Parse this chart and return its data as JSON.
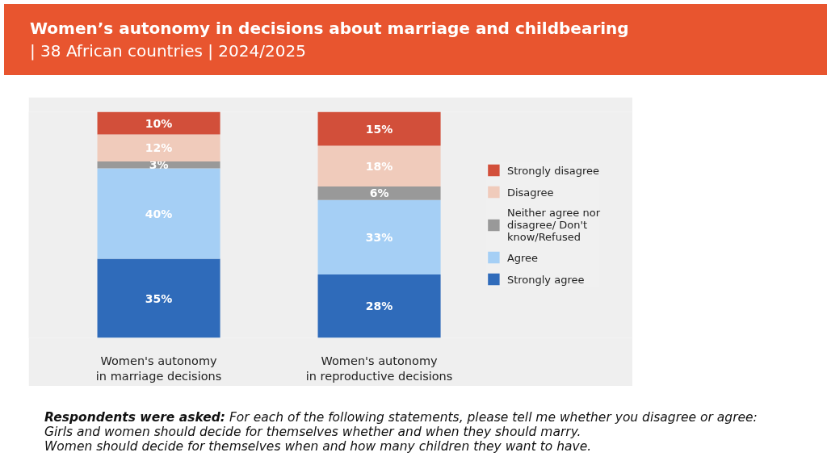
{
  "chart_data": {
    "type": "bar",
    "stacked": true,
    "title": "Women’s autonomy in decisions about marriage and childbearing",
    "subtitle": "| 38 African countries | 2024/2025",
    "categories": [
      "Women's autonomy in marriage decisions",
      "Women's autonomy in reproductive decisions"
    ],
    "series": [
      {
        "name": "Strongly agree",
        "color": "#2f6bba",
        "values": [
          35,
          28
        ],
        "value_labels": [
          "35%",
          "28%"
        ]
      },
      {
        "name": "Agree",
        "color": "#a5cff5",
        "values": [
          40,
          33
        ],
        "value_labels": [
          "40%",
          "33%"
        ]
      },
      {
        "name": "Neither agree nor disagree/ Don't know/Refused",
        "color": "#999999",
        "values": [
          3,
          6
        ],
        "value_labels": [
          "3%",
          "6%"
        ]
      },
      {
        "name": "Disagree",
        "color": "#f0cbbb",
        "values": [
          12,
          18
        ],
        "value_labels": [
          "12%",
          "18%"
        ]
      },
      {
        "name": "Strongly disagree",
        "color": "#d24f3a",
        "values": [
          10,
          15
        ],
        "value_labels": [
          "10%",
          "15%"
        ]
      }
    ],
    "legend": "right",
    "grid": false,
    "tick_labels": "x",
    "annotations": [
      "Respondents were asked:",
      "For each of the following statements, please tell me whether you disagree or agree:",
      "Girls and women should decide for themselves whether and when they should marry.",
      "Women should decide for themselves when and how many children they want to have."
    ]
  }
}
